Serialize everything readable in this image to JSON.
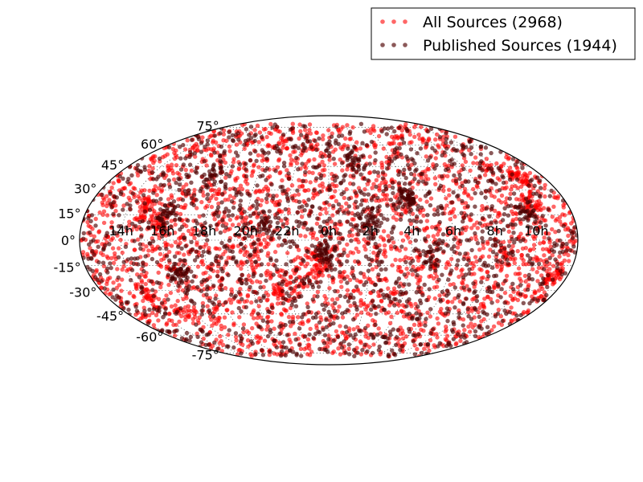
{
  "chart_data": {
    "type": "scatter",
    "projection": "mollweide",
    "title": "",
    "xlabel": "",
    "ylabel": "",
    "x_unit": "hours of right ascension",
    "y_unit": "degrees of declination",
    "grid": true,
    "legend_placement": "upper-right, outside the map",
    "x_tick_labels": [
      "14h",
      "16h",
      "18h",
      "20h",
      "22h",
      "0h",
      "2h",
      "4h",
      "6h",
      "8h",
      "10h"
    ],
    "y_tick_labels": [
      "-75°",
      "-60°",
      "-45°",
      "-30°",
      "-15°",
      "0°",
      "15°",
      "30°",
      "45°",
      "60°",
      "75°"
    ],
    "series": [
      {
        "name": "All Sources (2968)",
        "color": "#ff0000",
        "count": 2968,
        "clusters": [
          {
            "ra": 11.3,
            "dec": -22,
            "n": 45
          },
          {
            "ra": 10.6,
            "dec": 38,
            "n": 40
          },
          {
            "ra": 10.2,
            "dec": 20,
            "n": 35
          },
          {
            "ra": 14.8,
            "dec": 20,
            "n": 40
          },
          {
            "ra": 14.3,
            "dec": -35,
            "n": 30
          },
          {
            "ra": 15.8,
            "dec": 10,
            "n": 30
          },
          {
            "ra": 23.5,
            "dec": -15,
            "n": 40
          },
          {
            "ra": 21.5,
            "dec": -28,
            "n": 25
          },
          {
            "ra": 15.5,
            "dec": -45,
            "n": 20
          },
          {
            "ra": 8.5,
            "dec": -10,
            "n": 25
          }
        ]
      },
      {
        "name": "Published Sources (1944)",
        "color": "#4d0000",
        "count": 1944,
        "clusters": [
          {
            "ra": 4.0,
            "dec": 25,
            "n": 60
          },
          {
            "ra": 16.5,
            "dec": -20,
            "n": 40
          },
          {
            "ra": 23.8,
            "dec": -8,
            "n": 50
          },
          {
            "ra": 9.7,
            "dec": 15,
            "n": 35
          },
          {
            "ra": 16.0,
            "dec": 15,
            "n": 40
          },
          {
            "ra": 17.5,
            "dec": 38,
            "n": 30
          },
          {
            "ra": 2.0,
            "dec": 10,
            "n": 40
          },
          {
            "ra": 5.0,
            "dec": -10,
            "n": 30
          },
          {
            "ra": 21.0,
            "dec": 10,
            "n": 25
          },
          {
            "ra": 1.5,
            "dec": 50,
            "n": 25
          }
        ]
      }
    ]
  }
}
